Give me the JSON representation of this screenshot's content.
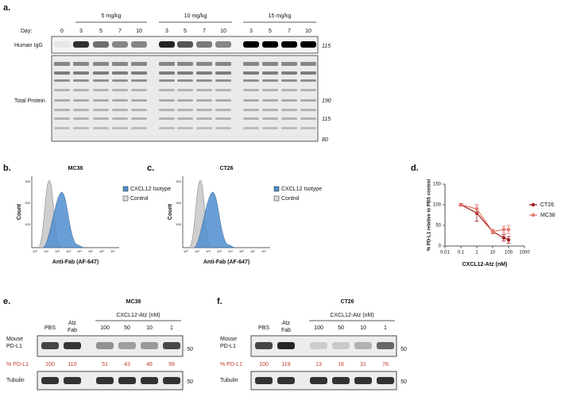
{
  "panel_a": {
    "label": "a.",
    "day_label": "Day:",
    "groups": [
      "5 mg/kg",
      "10 mg/kg",
      "15 mg/kg"
    ],
    "days": [
      "0",
      "3",
      "5",
      "7",
      "10",
      "3",
      "5",
      "7",
      "10",
      "3",
      "5",
      "7",
      "10"
    ],
    "rows": [
      "Human IgG",
      "Total Protein"
    ],
    "markers": [
      "115",
      "190",
      "115",
      "80"
    ]
  },
  "panel_b": {
    "label": "b.",
    "title": "MC38",
    "ylabel": "Count",
    "xlabel": "Anti-Fab (AF-647)",
    "legend": [
      "CXCL12 Isotype",
      "Control"
    ],
    "yticks": [
      "300",
      "200",
      "100"
    ],
    "xticks": [
      "10⁰",
      "10¹",
      "10²",
      "10³",
      "10⁴",
      "10⁵",
      "10⁶",
      "10⁷"
    ]
  },
  "panel_c": {
    "label": "c.",
    "title": "CT26",
    "ylabel": "Count",
    "xlabel": "Anti-Fab (AF-647)",
    "legend": [
      "CXCL12 Isotype",
      "Control"
    ],
    "yticks": [
      "300",
      "200",
      "100"
    ],
    "xticks": [
      "10⁰",
      "10¹",
      "10²",
      "10³",
      "10⁴",
      "10⁵",
      "10⁶",
      "10⁷"
    ]
  },
  "chart_data": {
    "type": "line",
    "label": "d.",
    "xlabel": "CXCL12-Atz (nM)",
    "ylabel": "% PD-L1 relative to PBS control",
    "x": [
      0.1,
      1,
      10,
      50,
      100
    ],
    "series": [
      {
        "name": "CT26",
        "color": "#9e1b1b",
        "values": [
          100,
          80,
          35,
          20,
          15
        ],
        "errors": [
          3,
          20,
          5,
          8,
          8
        ]
      },
      {
        "name": "MC38",
        "color": "#e7766b",
        "values": [
          100,
          90,
          35,
          40,
          40
        ],
        "errors": [
          2,
          10,
          5,
          8,
          10
        ]
      }
    ],
    "xscale": "log",
    "xlim": [
      0.01,
      1000
    ],
    "xticks": [
      0.01,
      0.1,
      1,
      10,
      100,
      1000
    ],
    "ylim": [
      0,
      150
    ],
    "yticks": [
      0,
      50,
      100,
      150
    ],
    "legend": "right"
  },
  "panel_e": {
    "label": "e.",
    "title": "MC38",
    "treatment": "CXCL12-Atz (nM)",
    "lanes": [
      "PBS",
      "Atz Fab",
      "100",
      "50",
      "10",
      "1"
    ],
    "rows": [
      "Mouse PD-L1",
      "% PD-L1",
      "Tubulin"
    ],
    "percent": [
      "100",
      "110",
      "51",
      "43",
      "46",
      "99"
    ],
    "markers": [
      "50",
      "50"
    ]
  },
  "panel_f": {
    "label": "f.",
    "title": "CT26",
    "treatment": "CXCL12-Atz (nM)",
    "lanes": [
      "PBS",
      "Atz Fab",
      "100",
      "50",
      "10",
      "1"
    ],
    "rows": [
      "Mouse PD-L1",
      "% PD-L1",
      "Tubulin"
    ],
    "percent": [
      "100",
      "119",
      "13",
      "16",
      "31",
      "78"
    ],
    "markers": [
      "50",
      "50"
    ]
  }
}
